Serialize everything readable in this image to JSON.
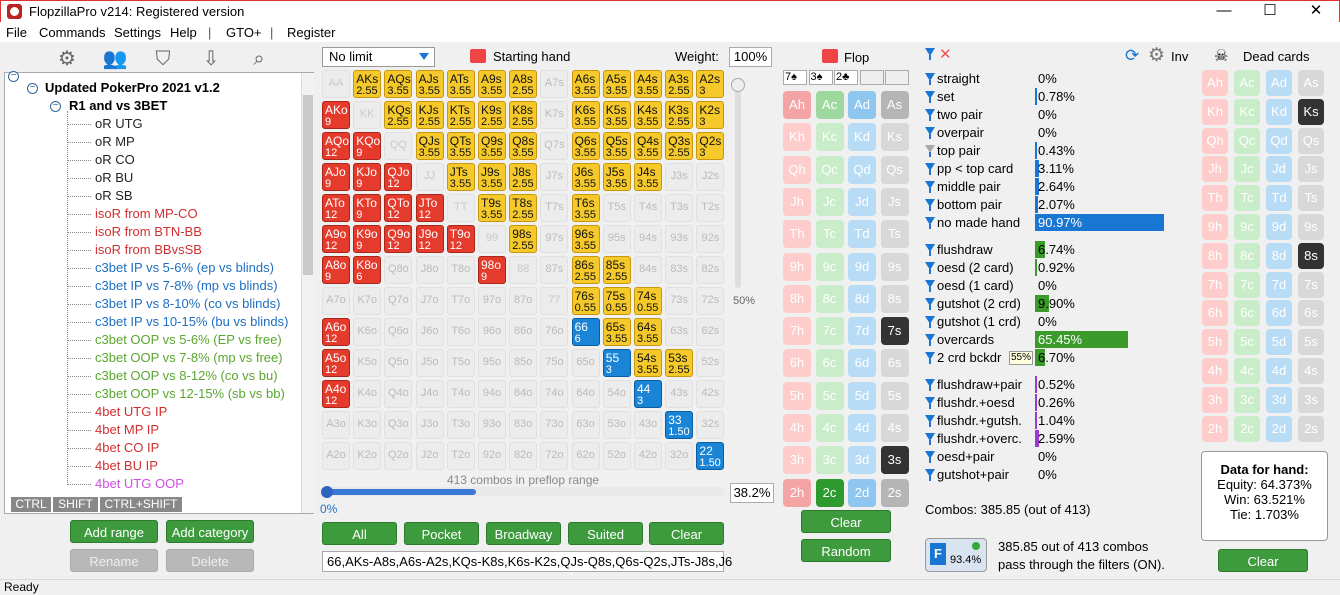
{
  "window": {
    "title": "FlopzillaPro v214: Registered version"
  },
  "menu": [
    "File",
    "Commands",
    "Settings",
    "Help",
    "|",
    "GTO+",
    "|",
    "Register"
  ],
  "tree": {
    "root": "Updated PokerPro 2021 v1.2",
    "category": "R1 and vs 3BET",
    "items": [
      {
        "label": "oR UTG",
        "color": "#222"
      },
      {
        "label": "oR MP",
        "color": "#222"
      },
      {
        "label": "oR CO",
        "color": "#222"
      },
      {
        "label": "oR BU",
        "color": "#222"
      },
      {
        "label": "oR SB",
        "color": "#222"
      },
      {
        "label": "isoR from MP-CO",
        "color": "#d23030"
      },
      {
        "label": "isoR from BTN-BB",
        "color": "#d23030"
      },
      {
        "label": "isoR from BBvsSB",
        "color": "#d23030"
      },
      {
        "label": "c3bet IP vs 5-6% (ep vs blinds)",
        "color": "#1e6fc2"
      },
      {
        "label": "c3bet IP vs 7-8% (mp vs blinds)",
        "color": "#1e6fc2"
      },
      {
        "label": "c3bet IP vs 8-10% (co vs blinds)",
        "color": "#1e6fc2"
      },
      {
        "label": "c3bet IP vs 10-15% (bu vs blinds)",
        "color": "#1e6fc2"
      },
      {
        "label": "c3bet OOP vs 5-6% (EP vs free)",
        "color": "#5aa630"
      },
      {
        "label": "c3bet OOP vs 7-8% (mp vs free)",
        "color": "#5aa630"
      },
      {
        "label": "c3bet OOP vs 8-12% (co vs bu)",
        "color": "#5aa630"
      },
      {
        "label": "c3bet OOP vs 12-15% (sb vs bb)",
        "color": "#5aa630"
      },
      {
        "label": "4bet UTG IP",
        "color": "#d23030"
      },
      {
        "label": "4bet MP IP",
        "color": "#d23030"
      },
      {
        "label": "4bet CO IP",
        "color": "#d23030"
      },
      {
        "label": "4bet BU IP",
        "color": "#d23030"
      },
      {
        "label": "4bet UTG OOP",
        "color": "#d04ee0"
      }
    ]
  },
  "modkeys": [
    "CTRL",
    "SHIFT",
    "CTRL+SHIFT"
  ],
  "buttons": {
    "add_range": "Add range",
    "add_category": "Add category",
    "rename": "Rename",
    "delete": "Delete"
  },
  "range": {
    "game": "No limit",
    "starting_hand": "Starting hand",
    "weight_label": "Weight:",
    "weight_value": "100%",
    "slider_pct": "50%",
    "combos_text": "413 combos in preflop range",
    "progress_left": "0%",
    "progress_pct": "38.2%",
    "progress_value": 0.382,
    "filter_buttons": [
      "All",
      "Pocket",
      "Broadway",
      "Suited",
      "Clear"
    ],
    "text": "66,AKs-A8s,A6s-A2s,KQs-K8s,K6s-K2s,QJs-Q8s,Q6s-Q2s,JTs-J8s,J6"
  },
  "grid": [
    [
      [
        "AA",
        "",
        "p"
      ],
      [
        "AKs",
        "2.55",
        "y"
      ],
      [
        "AQs",
        "3.55",
        "y"
      ],
      [
        "AJs",
        "3.55",
        "y"
      ],
      [
        "ATs",
        "3.55",
        "y"
      ],
      [
        "A9s",
        "3.55",
        "y"
      ],
      [
        "A8s",
        "2.55",
        "y"
      ],
      [
        "A7s",
        "",
        ""
      ],
      [
        "A6s",
        "3.55",
        "y"
      ],
      [
        "A5s",
        "3.55",
        "y"
      ],
      [
        "A4s",
        "3.55",
        "y"
      ],
      [
        "A3s",
        "2.55",
        "y"
      ],
      [
        "A2s",
        "3",
        "y"
      ]
    ],
    [
      [
        "AKo",
        "9",
        "r"
      ],
      [
        "KK",
        "",
        "p"
      ],
      [
        "KQs",
        "2.55",
        "y"
      ],
      [
        "KJs",
        "2.55",
        "y"
      ],
      [
        "KTs",
        "2.55",
        "y"
      ],
      [
        "K9s",
        "2.55",
        "y"
      ],
      [
        "K8s",
        "2.55",
        "y"
      ],
      [
        "K7s",
        "",
        ""
      ],
      [
        "K6s",
        "3.55",
        "y"
      ],
      [
        "K5s",
        "3.55",
        "y"
      ],
      [
        "K4s",
        "3.55",
        "y"
      ],
      [
        "K3s",
        "2.55",
        "y"
      ],
      [
        "K2s",
        "3",
        "y"
      ]
    ],
    [
      [
        "AQo",
        "12",
        "r"
      ],
      [
        "KQo",
        "9",
        "r"
      ],
      [
        "QQ",
        "",
        "p"
      ],
      [
        "QJs",
        "3.55",
        "y"
      ],
      [
        "QTs",
        "3.55",
        "y"
      ],
      [
        "Q9s",
        "3.55",
        "y"
      ],
      [
        "Q8s",
        "3.55",
        "y"
      ],
      [
        "Q7s",
        "",
        ""
      ],
      [
        "Q6s",
        "3.55",
        "y"
      ],
      [
        "Q5s",
        "3.55",
        "y"
      ],
      [
        "Q4s",
        "3.55",
        "y"
      ],
      [
        "Q3s",
        "2.55",
        "y"
      ],
      [
        "Q2s",
        "3",
        "y"
      ]
    ],
    [
      [
        "AJo",
        "9",
        "r"
      ],
      [
        "KJo",
        "9",
        "r"
      ],
      [
        "QJo",
        "12",
        "r"
      ],
      [
        "JJ",
        "",
        "p"
      ],
      [
        "JTs",
        "3.55",
        "y"
      ],
      [
        "J9s",
        "3.55",
        "y"
      ],
      [
        "J8s",
        "2.55",
        "y"
      ],
      [
        "J7s",
        "",
        ""
      ],
      [
        "J6s",
        "3.55",
        "y"
      ],
      [
        "J5s",
        "3.55",
        "y"
      ],
      [
        "J4s",
        "3.55",
        "y"
      ],
      [
        "J3s",
        "",
        ""
      ],
      [
        "J2s",
        "",
        ""
      ]
    ],
    [
      [
        "ATo",
        "12",
        "r"
      ],
      [
        "KTo",
        "9",
        "r"
      ],
      [
        "QTo",
        "12",
        "r"
      ],
      [
        "JTo",
        "12",
        "r"
      ],
      [
        "TT",
        "",
        "p"
      ],
      [
        "T9s",
        "3.55",
        "y"
      ],
      [
        "T8s",
        "2.55",
        "y"
      ],
      [
        "T7s",
        "",
        ""
      ],
      [
        "T6s",
        "3.55",
        "y"
      ],
      [
        "T5s",
        "",
        ""
      ],
      [
        "T4s",
        "",
        ""
      ],
      [
        "T3s",
        "",
        ""
      ],
      [
        "T2s",
        "",
        ""
      ]
    ],
    [
      [
        "A9o",
        "12",
        "r"
      ],
      [
        "K9o",
        "9",
        "r"
      ],
      [
        "Q9o",
        "12",
        "r"
      ],
      [
        "J9o",
        "12",
        "r"
      ],
      [
        "T9o",
        "12",
        "r"
      ],
      [
        "99",
        "",
        "p"
      ],
      [
        "98s",
        "2.55",
        "y"
      ],
      [
        "97s",
        "",
        ""
      ],
      [
        "96s",
        "3.55",
        "y"
      ],
      [
        "95s",
        "",
        ""
      ],
      [
        "94s",
        "",
        ""
      ],
      [
        "93s",
        "",
        ""
      ],
      [
        "92s",
        "",
        ""
      ]
    ],
    [
      [
        "A8o",
        "9",
        "r"
      ],
      [
        "K8o",
        "6",
        "r"
      ],
      [
        "Q8o",
        "",
        ""
      ],
      [
        "J8o",
        "",
        ""
      ],
      [
        "T8o",
        "",
        ""
      ],
      [
        "98o",
        "9",
        "r"
      ],
      [
        "88",
        "",
        "p"
      ],
      [
        "87s",
        "",
        ""
      ],
      [
        "86s",
        "2.55",
        "y"
      ],
      [
        "85s",
        "2.55",
        "y"
      ],
      [
        "84s",
        "",
        ""
      ],
      [
        "83s",
        "",
        ""
      ],
      [
        "82s",
        "",
        ""
      ]
    ],
    [
      [
        "A7o",
        "",
        ""
      ],
      [
        "K7o",
        "",
        ""
      ],
      [
        "Q7o",
        "",
        ""
      ],
      [
        "J7o",
        "",
        ""
      ],
      [
        "T7o",
        "",
        ""
      ],
      [
        "97o",
        "",
        ""
      ],
      [
        "87o",
        "",
        ""
      ],
      [
        "77",
        "",
        "p"
      ],
      [
        "76s",
        "0.55",
        "y"
      ],
      [
        "75s",
        "0.55",
        "y"
      ],
      [
        "74s",
        "0.55",
        "y"
      ],
      [
        "73s",
        "",
        ""
      ],
      [
        "72s",
        "",
        ""
      ]
    ],
    [
      [
        "A6o",
        "12",
        "r"
      ],
      [
        "K6o",
        "",
        ""
      ],
      [
        "Q6o",
        "",
        ""
      ],
      [
        "J6o",
        "",
        ""
      ],
      [
        "T6o",
        "",
        ""
      ],
      [
        "96o",
        "",
        ""
      ],
      [
        "86o",
        "",
        ""
      ],
      [
        "76o",
        "",
        ""
      ],
      [
        "66",
        "6",
        "b"
      ],
      [
        "65s",
        "3.55",
        "y"
      ],
      [
        "64s",
        "3.55",
        "y"
      ],
      [
        "63s",
        "",
        ""
      ],
      [
        "62s",
        "",
        ""
      ]
    ],
    [
      [
        "A5o",
        "12",
        "r"
      ],
      [
        "K5o",
        "",
        ""
      ],
      [
        "Q5o",
        "",
        ""
      ],
      [
        "J5o",
        "",
        ""
      ],
      [
        "T5o",
        "",
        ""
      ],
      [
        "95o",
        "",
        ""
      ],
      [
        "85o",
        "",
        ""
      ],
      [
        "75o",
        "",
        ""
      ],
      [
        "65o",
        "",
        ""
      ],
      [
        "55",
        "3",
        "b"
      ],
      [
        "54s",
        "3.55",
        "y"
      ],
      [
        "53s",
        "2.55",
        "y"
      ],
      [
        "52s",
        "",
        ""
      ]
    ],
    [
      [
        "A4o",
        "12",
        "r"
      ],
      [
        "K4o",
        "",
        ""
      ],
      [
        "Q4o",
        "",
        ""
      ],
      [
        "J4o",
        "",
        ""
      ],
      [
        "T4o",
        "",
        ""
      ],
      [
        "94o",
        "",
        ""
      ],
      [
        "84o",
        "",
        ""
      ],
      [
        "74o",
        "",
        ""
      ],
      [
        "64o",
        "",
        ""
      ],
      [
        "54o",
        "",
        ""
      ],
      [
        "44",
        "3",
        "b"
      ],
      [
        "43s",
        "",
        ""
      ],
      [
        "42s",
        "",
        ""
      ]
    ],
    [
      [
        "A3o",
        "",
        ""
      ],
      [
        "K3o",
        "",
        ""
      ],
      [
        "Q3o",
        "",
        ""
      ],
      [
        "J3o",
        "",
        ""
      ],
      [
        "T3o",
        "",
        ""
      ],
      [
        "93o",
        "",
        ""
      ],
      [
        "83o",
        "",
        ""
      ],
      [
        "73o",
        "",
        ""
      ],
      [
        "63o",
        "",
        ""
      ],
      [
        "53o",
        "",
        ""
      ],
      [
        "43o",
        "",
        ""
      ],
      [
        "33",
        "1.50",
        "b"
      ],
      [
        "32s",
        "",
        ""
      ]
    ],
    [
      [
        "A2o",
        "",
        ""
      ],
      [
        "K2o",
        "",
        ""
      ],
      [
        "Q2o",
        "",
        ""
      ],
      [
        "J2o",
        "",
        ""
      ],
      [
        "T2o",
        "",
        ""
      ],
      [
        "92o",
        "",
        ""
      ],
      [
        "82o",
        "",
        ""
      ],
      [
        "72o",
        "",
        ""
      ],
      [
        "62o",
        "",
        ""
      ],
      [
        "52o",
        "",
        ""
      ],
      [
        "42o",
        "",
        ""
      ],
      [
        "32o",
        "",
        ""
      ],
      [
        "22",
        "1.50",
        "b"
      ]
    ]
  ],
  "flop": {
    "title": "Flop",
    "slots": [
      "7♠",
      "3♠",
      "2♣",
      "",
      ""
    ],
    "ranks": [
      "A",
      "K",
      "Q",
      "J",
      "T",
      "9",
      "8",
      "7",
      "6",
      "5",
      "4",
      "3",
      "2"
    ],
    "selected": [
      [
        "7",
        "s"
      ],
      [
        "3",
        "s"
      ],
      [
        "2",
        "c"
      ]
    ],
    "clear": "Clear",
    "random": "Random"
  },
  "filters": {
    "groups": [
      [
        {
          "label": "straight",
          "pct": "0%",
          "value": 0,
          "color": "#1976d2"
        },
        {
          "label": "set",
          "pct": "0.78%",
          "value": 0.78,
          "color": "#1976d2"
        },
        {
          "label": "two pair",
          "pct": "0%",
          "value": 0,
          "color": "#1976d2"
        },
        {
          "label": "overpair",
          "pct": "0%",
          "value": 0,
          "color": "#1976d2"
        },
        {
          "label": "top pair",
          "pct": "0.43%",
          "value": 0.43,
          "color": "#1976d2"
        },
        {
          "label": "pp < top card",
          "pct": "3.11%",
          "value": 3.11,
          "color": "#1976d2"
        },
        {
          "label": "middle pair",
          "pct": "2.64%",
          "value": 2.64,
          "color": "#1976d2"
        },
        {
          "label": "bottom pair",
          "pct": "2.07%",
          "value": 2.07,
          "color": "#1976d2"
        },
        {
          "label": "no made hand",
          "pct": "90.97%",
          "value": 90.97,
          "color": "#1976d2"
        }
      ],
      [
        {
          "label": "flushdraw",
          "pct": "6.74%",
          "value": 6.74,
          "color": "#3a9a2a"
        },
        {
          "label": "oesd (2 card)",
          "pct": "0.92%",
          "value": 0.92,
          "color": "#3a9a2a"
        },
        {
          "label": "oesd (1 card)",
          "pct": "0%",
          "value": 0,
          "color": "#3a9a2a"
        },
        {
          "label": "gutshot (2 crd)",
          "pct": "9.90%",
          "value": 9.9,
          "color": "#3a9a2a"
        },
        {
          "label": "gutshot (1 crd)",
          "pct": "0%",
          "value": 0,
          "color": "#3a9a2a"
        },
        {
          "label": "overcards",
          "pct": "65.45%",
          "value": 65.45,
          "color": "#3a9a2a"
        },
        {
          "label": "2 crd bckdr",
          "pct": "6.70%",
          "value": 6.7,
          "color": "#3a9a2a",
          "badge": "55%"
        }
      ],
      [
        {
          "label": "flushdraw+pair",
          "pct": "0.52%",
          "value": 0.52,
          "color": "#9a3ad0"
        },
        {
          "label": "flushdr.+oesd",
          "pct": "0.26%",
          "value": 0.26,
          "color": "#9a3ad0"
        },
        {
          "label": "flushdr.+gutsh.",
          "pct": "1.04%",
          "value": 1.04,
          "color": "#9a3ad0"
        },
        {
          "label": "flushdr.+overc.",
          "pct": "2.59%",
          "value": 2.59,
          "color": "#9a3ad0"
        },
        {
          "label": "oesd+pair",
          "pct": "0%",
          "value": 0,
          "color": "#9a3ad0"
        },
        {
          "label": "gutshot+pair",
          "pct": "0%",
          "value": 0,
          "color": "#9a3ad0"
        }
      ]
    ],
    "combos": "Combos: 385.85 (out of 413)",
    "pass_line1": "385.85 out of 413 combos",
    "pass_line2": "pass through the filters (ON).",
    "pass_pct": "93.4%",
    "inv": "Inv"
  },
  "dead": {
    "title": "Dead cards",
    "selected": [
      [
        "K",
        "s"
      ],
      [
        "8",
        "s"
      ]
    ],
    "data_title": "Data for hand:",
    "equity": "Equity: 64.373%",
    "win": "Win: 63.521%",
    "tie": "Tie: 1.703%",
    "clear": "Clear"
  },
  "status": "Ready"
}
